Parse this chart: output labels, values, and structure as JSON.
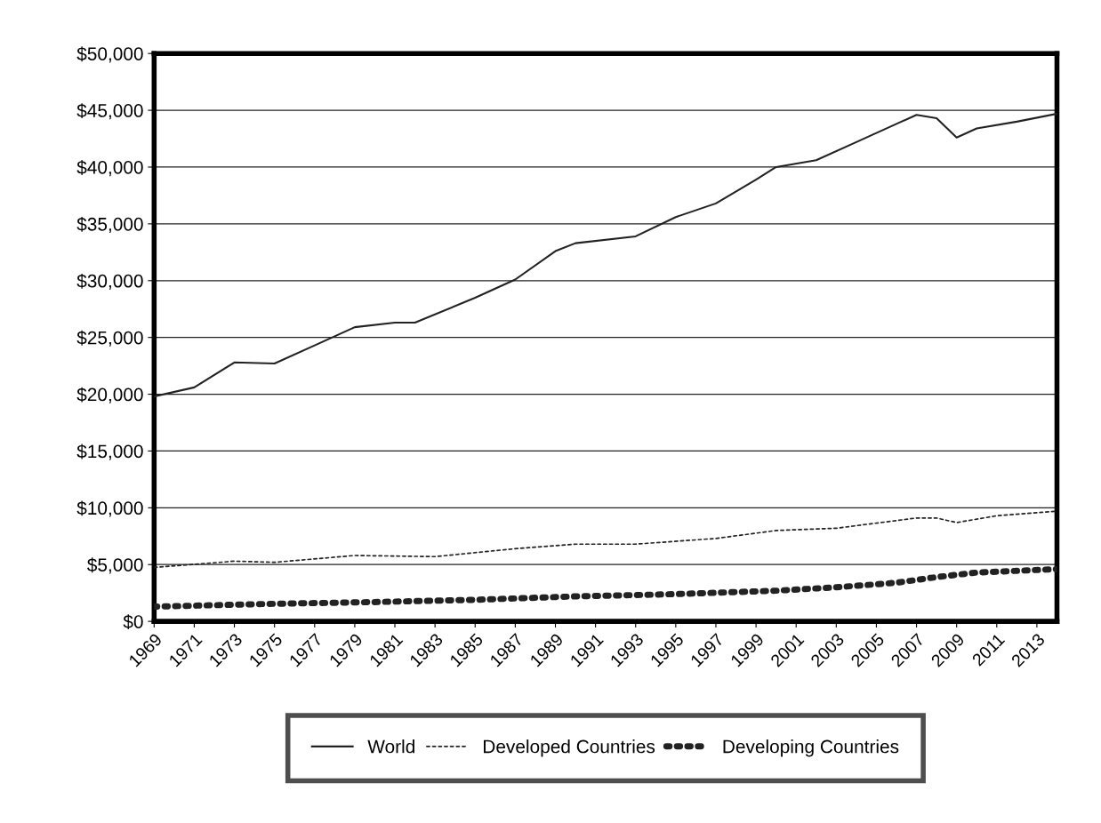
{
  "chart_data": {
    "type": "line",
    "xlim": [
      1969,
      2014
    ],
    "xticks": [
      1969,
      1971,
      1973,
      1975,
      1977,
      1979,
      1981,
      1983,
      1985,
      1987,
      1989,
      1991,
      1993,
      1995,
      1997,
      1999,
      2001,
      2003,
      2005,
      2007,
      2009,
      2011,
      2013
    ],
    "ylim": [
      0,
      50000
    ],
    "yticks": [
      {
        "value": 0,
        "label": "$0"
      },
      {
        "value": 5000,
        "label": "$5,000"
      },
      {
        "value": 10000,
        "label": "$10,000"
      },
      {
        "value": 15000,
        "label": "$15,000"
      },
      {
        "value": 20000,
        "label": "$20,000"
      },
      {
        "value": 25000,
        "label": "$25,000"
      },
      {
        "value": 30000,
        "label": "$30,000"
      },
      {
        "value": 35000,
        "label": "$35,000"
      },
      {
        "value": 40000,
        "label": "$40,000"
      },
      {
        "value": 45000,
        "label": "$45,000"
      },
      {
        "value": 50000,
        "label": "$50,000"
      }
    ],
    "grid": "y",
    "legend": "bottom",
    "marker": "none",
    "series": [
      {
        "name": "World",
        "color": "#222222",
        "line_style": "solid",
        "x": [
          1969,
          1971,
          1973,
          1975,
          1977,
          1979,
          1981,
          1982,
          1985,
          1987,
          1989,
          1990,
          1993,
          1995,
          1997,
          1999,
          2000,
          2002,
          2004,
          2006,
          2007,
          2008,
          2009,
          2010,
          2012,
          2014
        ],
        "values": [
          19800,
          20600,
          22800,
          22700,
          24300,
          25900,
          26300,
          26300,
          28500,
          30100,
          32600,
          33300,
          33900,
          35600,
          36800,
          38900,
          40000,
          40600,
          42200,
          43800,
          44600,
          44300,
          42600,
          43400,
          44000,
          44700
        ]
      },
      {
        "name": "Developed Countries",
        "color": "#222222",
        "line_style": "dashed",
        "x": [
          1969,
          1973,
          1975,
          1979,
          1983,
          1987,
          1990,
          1993,
          1997,
          2000,
          2003,
          2007,
          2008,
          2009,
          2011,
          2014
        ],
        "values": [
          4750,
          5300,
          5200,
          5800,
          5700,
          6400,
          6800,
          6800,
          7300,
          8000,
          8200,
          9100,
          9100,
          8700,
          9300,
          9700
        ]
      },
      {
        "name": "Developing Countries",
        "color": "#222222",
        "line_style": "dotted",
        "x": [
          1969,
          1975,
          1980,
          1985,
          1990,
          1995,
          2000,
          2003,
          2006,
          2008,
          2010,
          2014
        ],
        "values": [
          1300,
          1550,
          1700,
          1900,
          2200,
          2400,
          2700,
          3000,
          3400,
          3900,
          4300,
          4600
        ]
      }
    ]
  }
}
